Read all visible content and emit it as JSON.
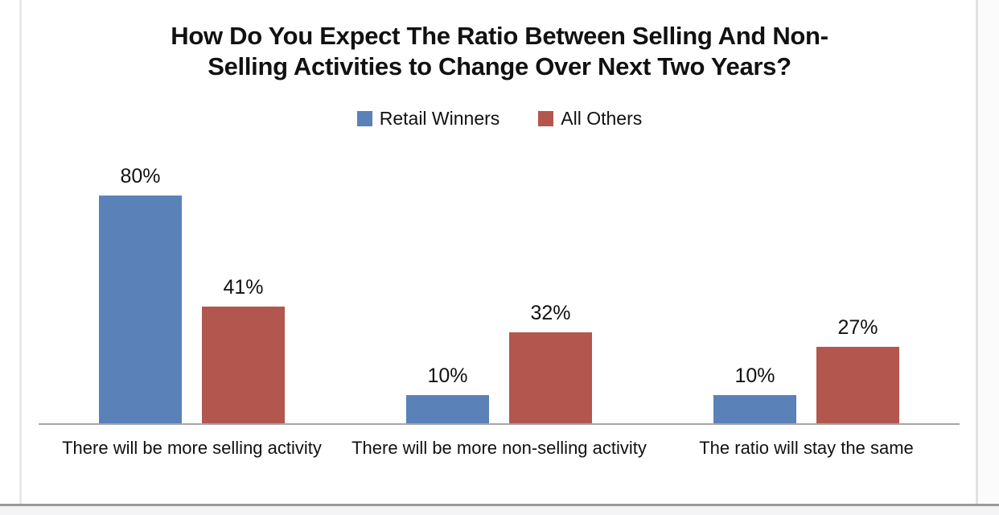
{
  "page": {
    "title_lines": [
      "How Do You Expect The Ratio Between Selling And Non-",
      "Selling Activities to Change Over Next Two Years?"
    ]
  },
  "chart_data": {
    "type": "bar",
    "title": "How Do You Expect The Ratio Between Selling And Non-Selling Activities to Change Over Next Two Years?",
    "categories": [
      "There will be more selling activity",
      "There will be more non-selling activity",
      "The ratio will stay the same"
    ],
    "series": [
      {
        "name": "Retail Winners",
        "color": "#5A81B8",
        "values": [
          80,
          10,
          10
        ]
      },
      {
        "name": "All Others",
        "color": "#B3564E",
        "values": [
          41,
          32,
          27
        ]
      }
    ],
    "value_suffix": "%",
    "ylim": [
      0,
      100
    ],
    "grid": false,
    "y_axis_visible": false,
    "legend_position": "top",
    "data_labels": [
      "80%",
      "41%",
      "10%",
      "32%",
      "10%",
      "27%"
    ],
    "colors": {
      "axis_line": "#a6a6a6",
      "retail_winners": "#5A81B8",
      "all_others": "#B3564E"
    }
  }
}
